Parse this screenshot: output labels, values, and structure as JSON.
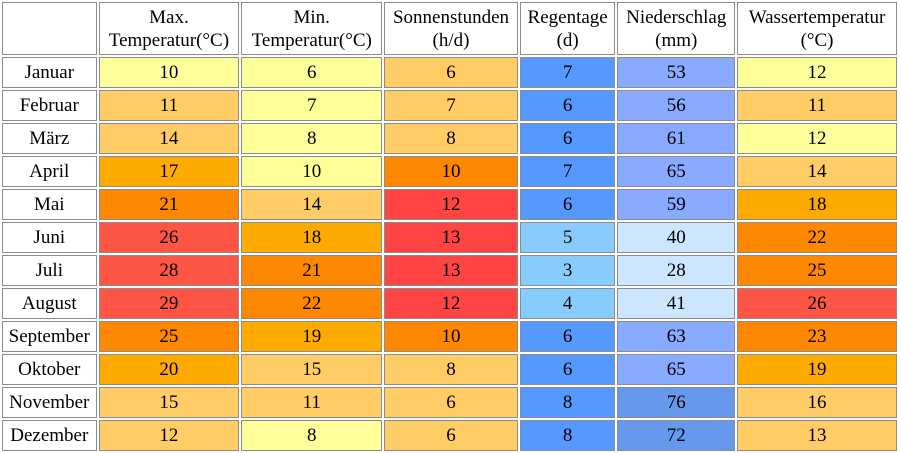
{
  "headers": [
    {
      "line1": "Max.",
      "line2": "Temperatur(°C)"
    },
    {
      "line1": "Min.",
      "line2": "Temperatur(°C)"
    },
    {
      "line1": "Sonnenstunden",
      "line2": "(h/d)"
    },
    {
      "line1": "Regentage",
      "line2": "(d)"
    },
    {
      "line1": "Niederschlag",
      "line2": "(mm)"
    },
    {
      "line1": "Wassertemperatur",
      "line2": "(°C)"
    }
  ],
  "rows": [
    {
      "month": "Januar",
      "values": [
        "10",
        "6",
        "6",
        "7",
        "53",
        "12"
      ],
      "colors": [
        "#ffff99",
        "#ffff99",
        "#ffcc66",
        "#5599ff",
        "#88aaff",
        "#ffff99"
      ]
    },
    {
      "month": "Februar",
      "values": [
        "11",
        "7",
        "7",
        "6",
        "56",
        "11"
      ],
      "colors": [
        "#ffcc66",
        "#ffff99",
        "#ffcc66",
        "#5599ff",
        "#88aaff",
        "#ffcc66"
      ]
    },
    {
      "month": "März",
      "values": [
        "14",
        "8",
        "8",
        "6",
        "61",
        "12"
      ],
      "colors": [
        "#ffcc66",
        "#ffff99",
        "#ffcc66",
        "#5599ff",
        "#88aaff",
        "#ffff99"
      ]
    },
    {
      "month": "April",
      "values": [
        "17",
        "10",
        "10",
        "7",
        "65",
        "14"
      ],
      "colors": [
        "#ffaa00",
        "#ffff99",
        "#ff8800",
        "#5599ff",
        "#88aaff",
        "#ffcc66"
      ]
    },
    {
      "month": "Mai",
      "values": [
        "21",
        "14",
        "12",
        "6",
        "59",
        "18"
      ],
      "colors": [
        "#ff8800",
        "#ffcc66",
        "#ff4444",
        "#5599ff",
        "#88aaff",
        "#ffaa00"
      ]
    },
    {
      "month": "Juni",
      "values": [
        "26",
        "18",
        "13",
        "5",
        "40",
        "22"
      ],
      "colors": [
        "#ff5544",
        "#ffaa00",
        "#ff4444",
        "#88ccff",
        "#cce6ff",
        "#ff8800"
      ]
    },
    {
      "month": "Juli",
      "values": [
        "28",
        "21",
        "13",
        "3",
        "28",
        "25"
      ],
      "colors": [
        "#ff5544",
        "#ff8800",
        "#ff4444",
        "#88ccff",
        "#cce6ff",
        "#ff8800"
      ]
    },
    {
      "month": "August",
      "values": [
        "29",
        "22",
        "12",
        "4",
        "41",
        "26"
      ],
      "colors": [
        "#ff5544",
        "#ff8800",
        "#ff4444",
        "#88ccff",
        "#cce6ff",
        "#ff5544"
      ]
    },
    {
      "month": "September",
      "values": [
        "25",
        "19",
        "10",
        "6",
        "63",
        "23"
      ],
      "colors": [
        "#ff8800",
        "#ffaa00",
        "#ff8800",
        "#5599ff",
        "#88aaff",
        "#ff8800"
      ]
    },
    {
      "month": "Oktober",
      "values": [
        "20",
        "15",
        "8",
        "6",
        "65",
        "19"
      ],
      "colors": [
        "#ffaa00",
        "#ffcc66",
        "#ffcc66",
        "#5599ff",
        "#88aaff",
        "#ffaa00"
      ]
    },
    {
      "month": "November",
      "values": [
        "15",
        "11",
        "6",
        "8",
        "76",
        "16"
      ],
      "colors": [
        "#ffcc66",
        "#ffcc66",
        "#ffcc66",
        "#5599ff",
        "#6699ee",
        "#ffcc66"
      ]
    },
    {
      "month": "Dezember",
      "values": [
        "12",
        "8",
        "6",
        "8",
        "72",
        "13"
      ],
      "colors": [
        "#ffcc66",
        "#ffff99",
        "#ffcc66",
        "#5599ff",
        "#6699ee",
        "#ffcc66"
      ]
    }
  ]
}
